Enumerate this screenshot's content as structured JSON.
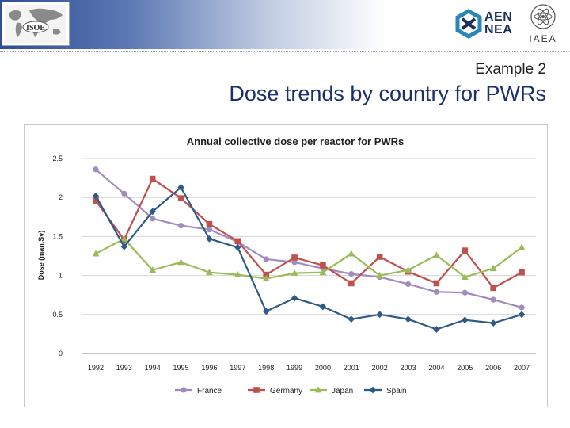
{
  "header": {
    "logos": {
      "isoe": {
        "label": "ISOE",
        "icon": "world-map-icon"
      },
      "nea": {
        "line1": "AEN",
        "line2": "NEA",
        "icon": "nea-emblem-icon"
      },
      "iaea": {
        "label": "IAEA",
        "icon": "iaea-atom-icon"
      }
    },
    "subtitle": "Example 2",
    "title": "Dose trends by country for PWRs"
  },
  "chart_data": {
    "type": "line",
    "title": "Annual collective dose per reactor for PWRs",
    "xlabel": "",
    "ylabel": "Dose (man.Sv)",
    "ylim": [
      0,
      2.5
    ],
    "yticks": [
      "0",
      "0.5",
      "1",
      "1.5",
      "2",
      "2.5"
    ],
    "grid": true,
    "legend_position": "bottom",
    "categories": [
      "1992",
      "1993",
      "1994",
      "1995",
      "1996",
      "1997",
      "1998",
      "1999",
      "2000",
      "2001",
      "2002",
      "2003",
      "2004",
      "2005",
      "2006",
      "2007"
    ],
    "series": [
      {
        "name": "France",
        "color": "#a08cc0",
        "marker": "circle",
        "values": [
          2.36,
          2.05,
          1.73,
          1.64,
          1.59,
          1.43,
          1.21,
          1.17,
          1.09,
          1.02,
          0.98,
          0.89,
          0.79,
          0.78,
          0.69,
          0.59
        ]
      },
      {
        "name": "Germany",
        "color": "#c0504d",
        "marker": "square",
        "values": [
          1.96,
          1.46,
          2.24,
          1.99,
          1.66,
          1.44,
          1.01,
          1.23,
          1.13,
          0.9,
          1.24,
          1.05,
          0.9,
          1.32,
          0.84,
          1.04
        ]
      },
      {
        "name": "Japan",
        "color": "#9bbb59",
        "marker": "triangle",
        "values": [
          1.28,
          1.47,
          1.07,
          1.17,
          1.04,
          1.01,
          0.96,
          1.03,
          1.04,
          1.28,
          1.0,
          1.07,
          1.26,
          0.98,
          1.09,
          1.36
        ]
      },
      {
        "name": "Spain",
        "color": "#2e5a86",
        "marker": "diamond",
        "values": [
          2.02,
          1.37,
          1.82,
          2.13,
          1.47,
          1.36,
          0.54,
          0.71,
          0.6,
          0.44,
          0.5,
          0.44,
          0.31,
          0.43,
          0.39,
          0.5
        ]
      }
    ]
  }
}
